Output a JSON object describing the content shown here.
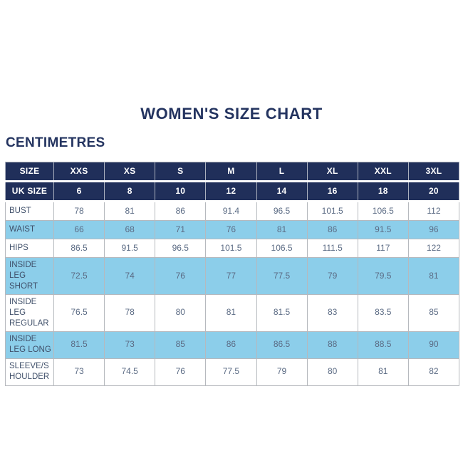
{
  "page": {
    "title": "WOMEN'S SIZE CHART",
    "subtitle": "CENTIMETRES"
  },
  "colors": {
    "navy": "#202f5a",
    "title_navy": "#243460",
    "light_blue": "#8cceea",
    "label_text": "#40506a",
    "value_text": "#5b6b84",
    "border": "#b6b9be",
    "header_text": "#ffffff"
  },
  "table": {
    "header_rows": [
      {
        "label": "SIZE",
        "values": [
          "XXS",
          "XS",
          "S",
          "M",
          "L",
          "XL",
          "XXL",
          "3XL"
        ]
      },
      {
        "label": "UK SIZE",
        "values": [
          "6",
          "8",
          "10",
          "12",
          "14",
          "16",
          "18",
          "20"
        ]
      }
    ],
    "rows": [
      {
        "label": "BUST",
        "shaded": false,
        "values": [
          "78",
          "81",
          "86",
          "91.4",
          "96.5",
          "101.5",
          "106.5",
          "112"
        ]
      },
      {
        "label": "WAIST",
        "shaded": true,
        "values": [
          "66",
          "68",
          "71",
          "76",
          "81",
          "86",
          "91.5",
          "96"
        ]
      },
      {
        "label": "HIPS",
        "shaded": false,
        "values": [
          "86.5",
          "91.5",
          "96.5",
          "101.5",
          "106.5",
          "111.5",
          "117",
          "122"
        ]
      },
      {
        "label": "INSIDE LEG SHORT",
        "shaded": true,
        "values": [
          "72.5",
          "74",
          "76",
          "77",
          "77.5",
          "79",
          "79.5",
          "81"
        ]
      },
      {
        "label": "INSIDE LEG REGULAR",
        "shaded": false,
        "values": [
          "76.5",
          "78",
          "80",
          "81",
          "81.5",
          "83",
          "83.5",
          "85"
        ]
      },
      {
        "label": "INSIDE LEG LONG",
        "shaded": true,
        "values": [
          "81.5",
          "73",
          "85",
          "86",
          "86.5",
          "88",
          "88.5",
          "90"
        ]
      },
      {
        "label": "SLEEVE/SHOULDER",
        "shaded": false,
        "values": [
          "73",
          "74.5",
          "76",
          "77.5",
          "79",
          "80",
          "81",
          "82"
        ]
      }
    ]
  },
  "chart_data": {
    "type": "table",
    "title": "WOMEN'S SIZE CHART",
    "units": "CENTIMETRES",
    "categories": [
      "XXS",
      "XS",
      "S",
      "M",
      "L",
      "XL",
      "XXL",
      "3XL"
    ],
    "uk_sizes": [
      6,
      8,
      10,
      12,
      14,
      16,
      18,
      20
    ],
    "series": [
      {
        "name": "BUST",
        "values": [
          78,
          81,
          86,
          91.4,
          96.5,
          101.5,
          106.5,
          112
        ]
      },
      {
        "name": "WAIST",
        "values": [
          66,
          68,
          71,
          76,
          81,
          86,
          91.5,
          96
        ]
      },
      {
        "name": "HIPS",
        "values": [
          86.5,
          91.5,
          96.5,
          101.5,
          106.5,
          111.5,
          117,
          122
        ]
      },
      {
        "name": "INSIDE LEG SHORT",
        "values": [
          72.5,
          74,
          76,
          77,
          77.5,
          79,
          79.5,
          81
        ]
      },
      {
        "name": "INSIDE LEG REGULAR",
        "values": [
          76.5,
          78,
          80,
          81,
          81.5,
          83,
          83.5,
          85
        ]
      },
      {
        "name": "INSIDE LEG LONG",
        "values": [
          81.5,
          73,
          85,
          86,
          86.5,
          88,
          88.5,
          90
        ]
      },
      {
        "name": "SLEEVE/SHOULDER",
        "values": [
          73,
          74.5,
          76,
          77.5,
          79,
          80,
          81,
          82
        ]
      }
    ]
  }
}
